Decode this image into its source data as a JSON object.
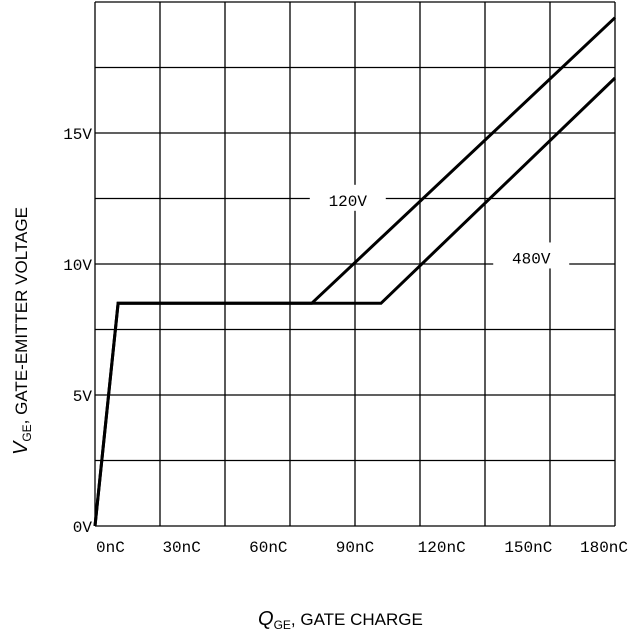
{
  "chart_data": {
    "type": "line",
    "title": "",
    "xlabel": {
      "symbol": "Q",
      "subscript": "GE",
      "text": ", GATE CHARGE"
    },
    "ylabel": {
      "symbol": "V",
      "subscript": "GE",
      "text": ",  GATE-EMITTER VOLTAGE"
    },
    "xlim": [
      0,
      180
    ],
    "ylim": [
      0,
      20
    ],
    "x_tick_labels": [
      "0nC",
      "30nC",
      "60nC",
      "90nC",
      "120nC",
      "150nC",
      "180nC"
    ],
    "y_tick_labels": [
      "0V",
      "5V",
      "10V",
      "15V"
    ],
    "y_tick_values": [
      0,
      5,
      10,
      15
    ],
    "grid": true,
    "series": [
      {
        "name": "120V",
        "points": [
          [
            0,
            0
          ],
          [
            8,
            8.5
          ],
          [
            75,
            8.5
          ],
          [
            180,
            19.4
          ]
        ]
      },
      {
        "name": "480V",
        "points": [
          [
            0,
            0
          ],
          [
            8,
            8.5
          ],
          [
            99,
            8.5
          ],
          [
            180,
            17.1
          ]
        ]
      }
    ]
  }
}
